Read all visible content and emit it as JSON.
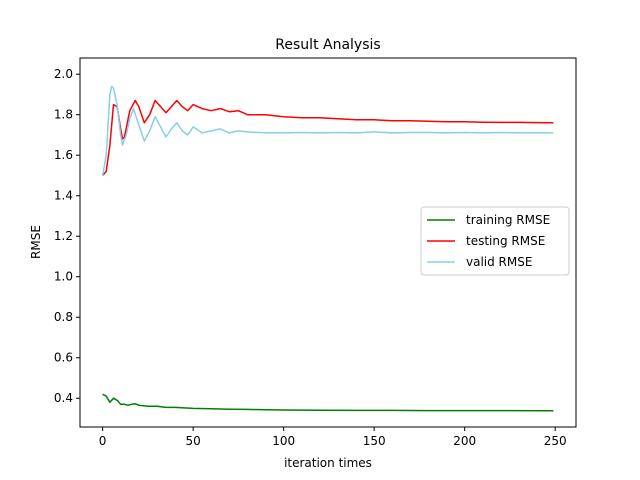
{
  "chart_data": {
    "type": "line",
    "title": "Result Analysis",
    "xlabel": "iteration times",
    "ylabel": "RMSE",
    "xlim": [
      -12.5,
      261.5
    ],
    "ylim": [
      0.258,
      2.08
    ],
    "xticks": [
      0,
      50,
      100,
      150,
      200,
      250
    ],
    "xtick_labels": [
      "0",
      "50",
      "100",
      "150",
      "200",
      "250"
    ],
    "yticks": [
      0.4,
      0.6,
      0.8,
      1.0,
      1.2,
      1.4,
      1.6,
      1.8,
      2.0
    ],
    "ytick_labels": [
      "0.4",
      "0.6",
      "0.8",
      "1.0",
      "1.2",
      "1.4",
      "1.6",
      "1.8",
      "2.0"
    ],
    "grid": false,
    "legend": "center-right",
    "series": [
      {
        "name": "training RMSE",
        "color": "#008000",
        "x": [
          0,
          2,
          4,
          6,
          8,
          10,
          12,
          14,
          16,
          18,
          20,
          25,
          30,
          35,
          40,
          50,
          60,
          70,
          80,
          90,
          100,
          120,
          140,
          160,
          180,
          200,
          220,
          249
        ],
        "y": [
          0.42,
          0.41,
          0.38,
          0.4,
          0.39,
          0.37,
          0.37,
          0.365,
          0.37,
          0.373,
          0.365,
          0.36,
          0.36,
          0.355,
          0.355,
          0.35,
          0.348,
          0.346,
          0.345,
          0.343,
          0.342,
          0.341,
          0.34,
          0.34,
          0.339,
          0.339,
          0.339,
          0.338
        ]
      },
      {
        "name": "testing RMSE",
        "color": "#ff0000",
        "x": [
          0,
          2,
          4,
          6,
          8,
          10,
          11,
          12,
          15,
          18,
          20,
          23,
          26,
          29,
          32,
          35,
          38,
          41,
          44,
          47,
          50,
          55,
          60,
          65,
          70,
          75,
          80,
          90,
          100,
          110,
          120,
          130,
          140,
          150,
          160,
          170,
          180,
          190,
          200,
          210,
          220,
          230,
          240,
          249
        ],
        "y": [
          1.5,
          1.52,
          1.65,
          1.85,
          1.84,
          1.73,
          1.68,
          1.69,
          1.82,
          1.87,
          1.84,
          1.76,
          1.8,
          1.87,
          1.84,
          1.81,
          1.84,
          1.87,
          1.84,
          1.82,
          1.85,
          1.83,
          1.82,
          1.83,
          1.815,
          1.82,
          1.8,
          1.8,
          1.79,
          1.785,
          1.785,
          1.78,
          1.775,
          1.775,
          1.77,
          1.77,
          1.768,
          1.765,
          1.765,
          1.763,
          1.762,
          1.762,
          1.761,
          1.76
        ]
      },
      {
        "name": "valid RMSE",
        "color": "#87ceeb",
        "x": [
          0,
          2,
          4,
          5,
          6,
          8,
          10,
          11,
          13,
          15,
          17,
          20,
          23,
          26,
          29,
          32,
          35,
          38,
          41,
          44,
          47,
          50,
          55,
          60,
          65,
          70,
          75,
          80,
          90,
          100,
          110,
          120,
          130,
          140,
          150,
          160,
          170,
          180,
          190,
          200,
          210,
          220,
          230,
          240,
          249
        ],
        "y": [
          1.5,
          1.6,
          1.9,
          1.94,
          1.93,
          1.85,
          1.7,
          1.65,
          1.7,
          1.78,
          1.83,
          1.75,
          1.67,
          1.72,
          1.79,
          1.74,
          1.69,
          1.73,
          1.76,
          1.72,
          1.7,
          1.74,
          1.71,
          1.72,
          1.73,
          1.71,
          1.72,
          1.715,
          1.71,
          1.71,
          1.712,
          1.71,
          1.712,
          1.71,
          1.715,
          1.71,
          1.712,
          1.712,
          1.71,
          1.712,
          1.71,
          1.712,
          1.71,
          1.71,
          1.71
        ]
      }
    ]
  }
}
